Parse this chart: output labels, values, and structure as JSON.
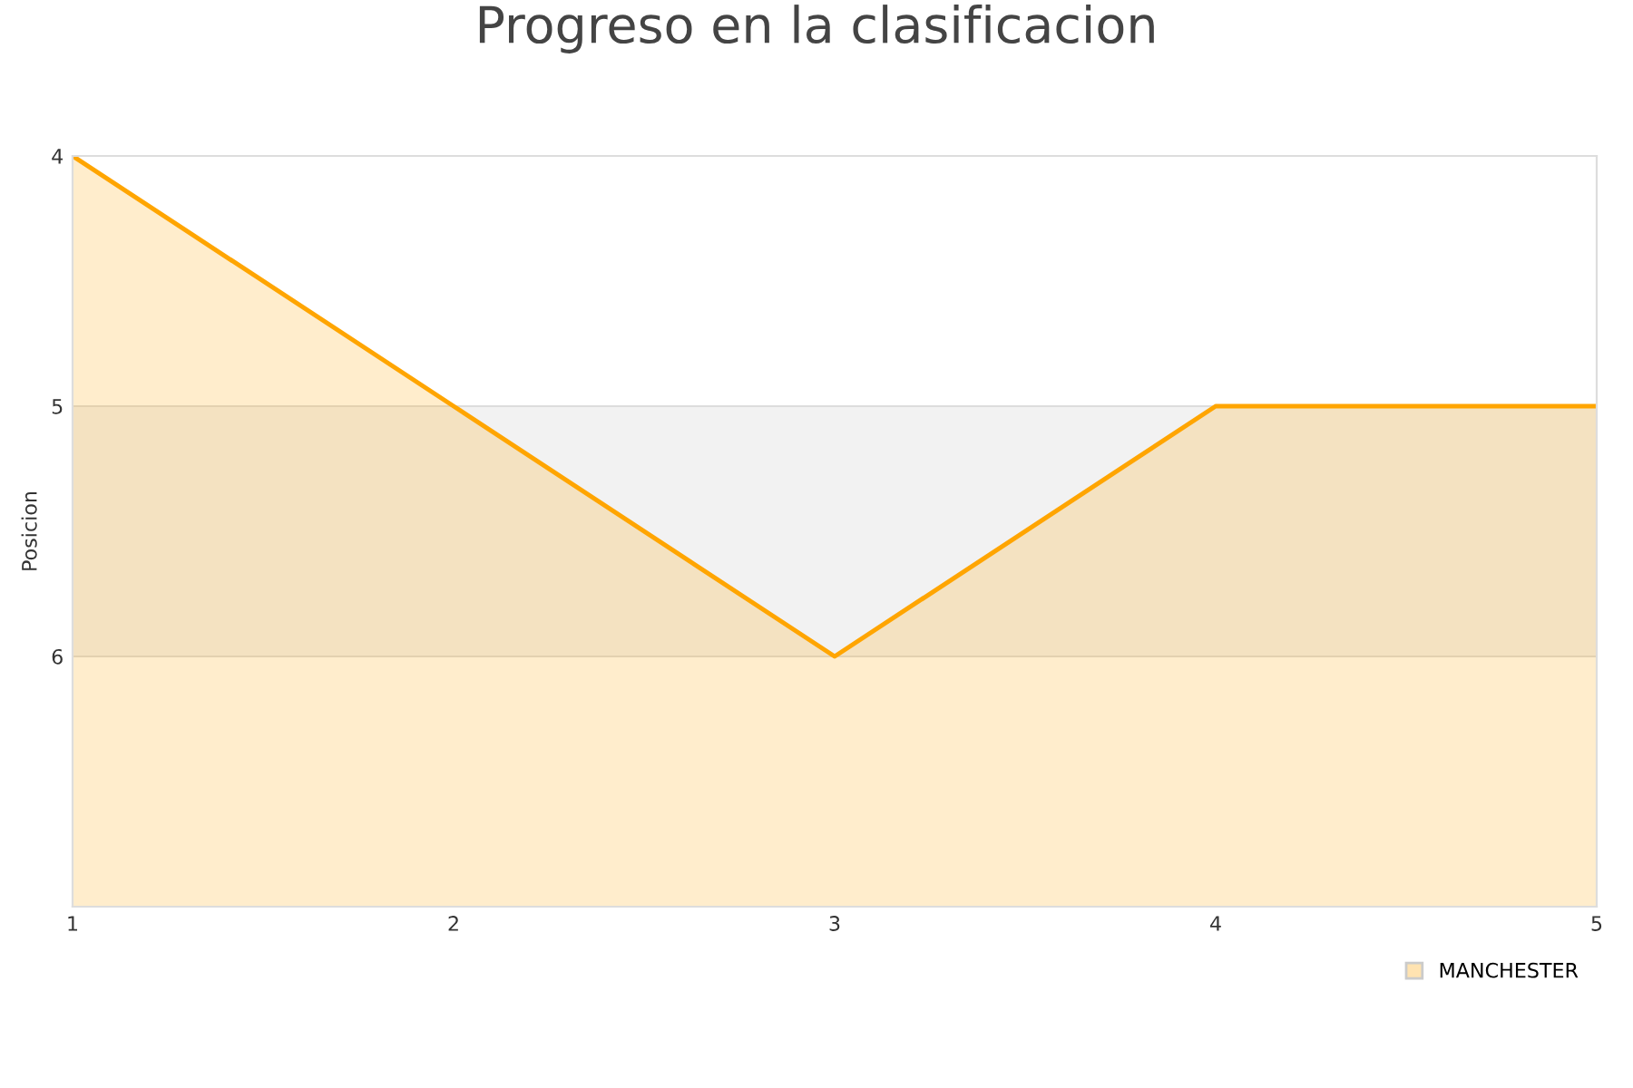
{
  "chart_data": {
    "type": "area",
    "title": "Progreso en la clasificacion",
    "ylabel": "Posicion",
    "x": [
      1,
      2,
      3,
      4,
      5
    ],
    "series": [
      {
        "name": "MANCHESTER",
        "color": "#ffa500",
        "values": [
          4,
          5,
          6,
          5,
          5
        ]
      }
    ],
    "xlim": [
      1,
      5
    ],
    "xticks": [
      1,
      2,
      3,
      4,
      5
    ],
    "ylim": [
      7,
      4
    ],
    "yticks": [
      4,
      5,
      6
    ],
    "bands": [
      {
        "axis": "y",
        "from": 5,
        "to": 6,
        "color": "#f2f2f2"
      }
    ],
    "grid": "y",
    "legend": "bottom right",
    "marker": "none",
    "line_style": "solid"
  }
}
